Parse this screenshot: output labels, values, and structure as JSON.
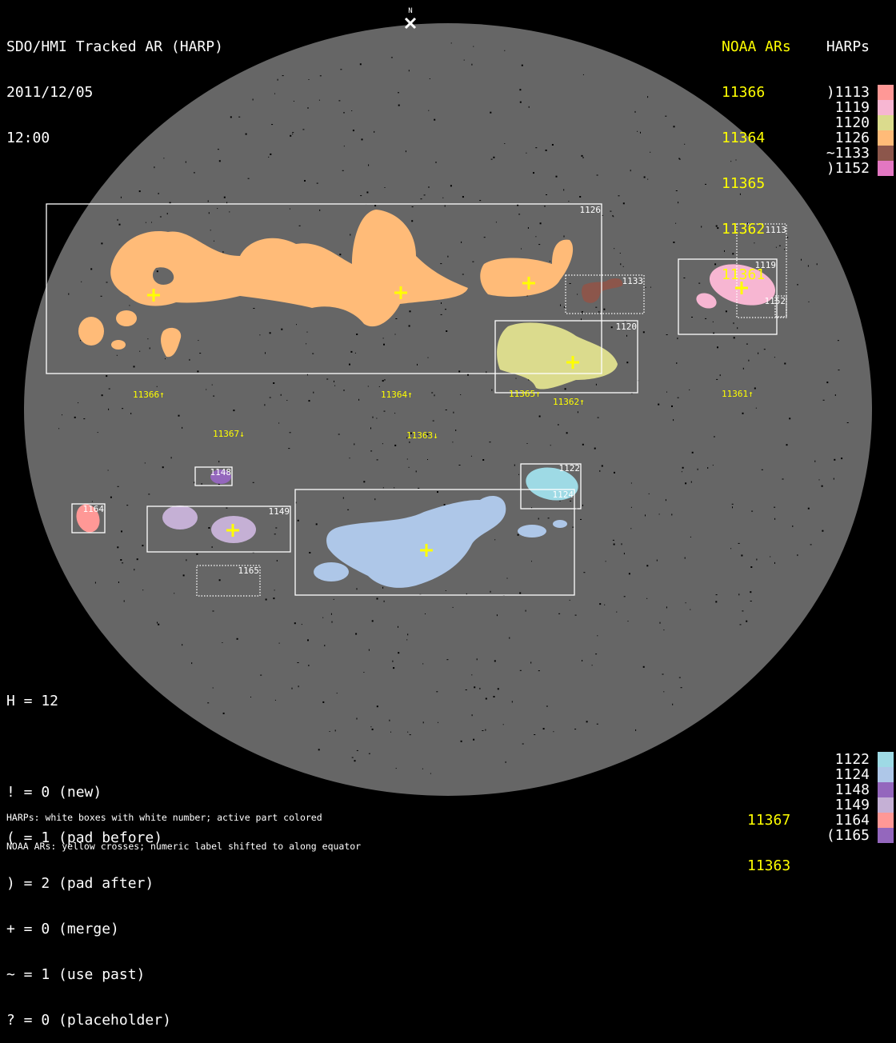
{
  "header": {
    "title": "SDO/HMI Tracked AR (HARP)",
    "date": "2011/12/05",
    "time": "12:00",
    "north_marker": "N"
  },
  "legend_top": {
    "noaa_header": "NOAA ARs",
    "harp_header": "HARPs",
    "noaa": [
      "11366",
      "11364",
      "11365",
      "11362",
      "11361"
    ],
    "harps": [
      {
        "label": ")1113",
        "color": "#ff9896"
      },
      {
        "label": "1119",
        "color": "#f7b6d2"
      },
      {
        "label": "1120",
        "color": "#dbdb8d"
      },
      {
        "label": "1126",
        "color": "#ffbb78"
      },
      {
        "label": "~1133",
        "color": "#8c564b"
      },
      {
        "label": ")1152",
        "color": "#e377c2"
      }
    ]
  },
  "legend_bottom": {
    "noaa": [
      "11367",
      "11363"
    ],
    "harps": [
      {
        "label": "1122",
        "color": "#9edae5"
      },
      {
        "label": "1124",
        "color": "#aec7e8"
      },
      {
        "label": "1148",
        "color": "#9467bd"
      },
      {
        "label": "1149",
        "color": "#c5b0d5"
      },
      {
        "label": "1164",
        "color": "#ff9896"
      },
      {
        "label": "(1165",
        "color": "#9467bd"
      }
    ]
  },
  "stats": {
    "h_line": "H = 12",
    "lines": [
      "! = 0 (new)",
      "( = 1 (pad before)",
      ") = 2 (pad after)",
      "+ = 0 (merge)",
      "~ = 1 (use past)",
      "? = 0 (placeholder)"
    ]
  },
  "notes": [
    "HARPs: white boxes with white number; active part colored",
    "NOAA ARs: yellow crosses; numeric label shifted to along equator"
  ],
  "map": {
    "disk_color": "#666666",
    "box_labels": {
      "h1126": "1126",
      "h1113": "1113",
      "h1119": "1119",
      "h1152": "1152",
      "h1133": "1133",
      "h1120": "1120",
      "h1122": "1122",
      "h1124": "1124",
      "h1148": "1148",
      "h1164": "1164",
      "h1149": "1149",
      "h1165": "1165"
    },
    "ar_labels": {
      "a11366": "11366↑",
      "a11364": "11364↑",
      "a11365": "11365↑",
      "a11362": "11362↑",
      "a11361": "11361↑",
      "a11367": "11367↓",
      "a11363": "11363↓"
    }
  }
}
